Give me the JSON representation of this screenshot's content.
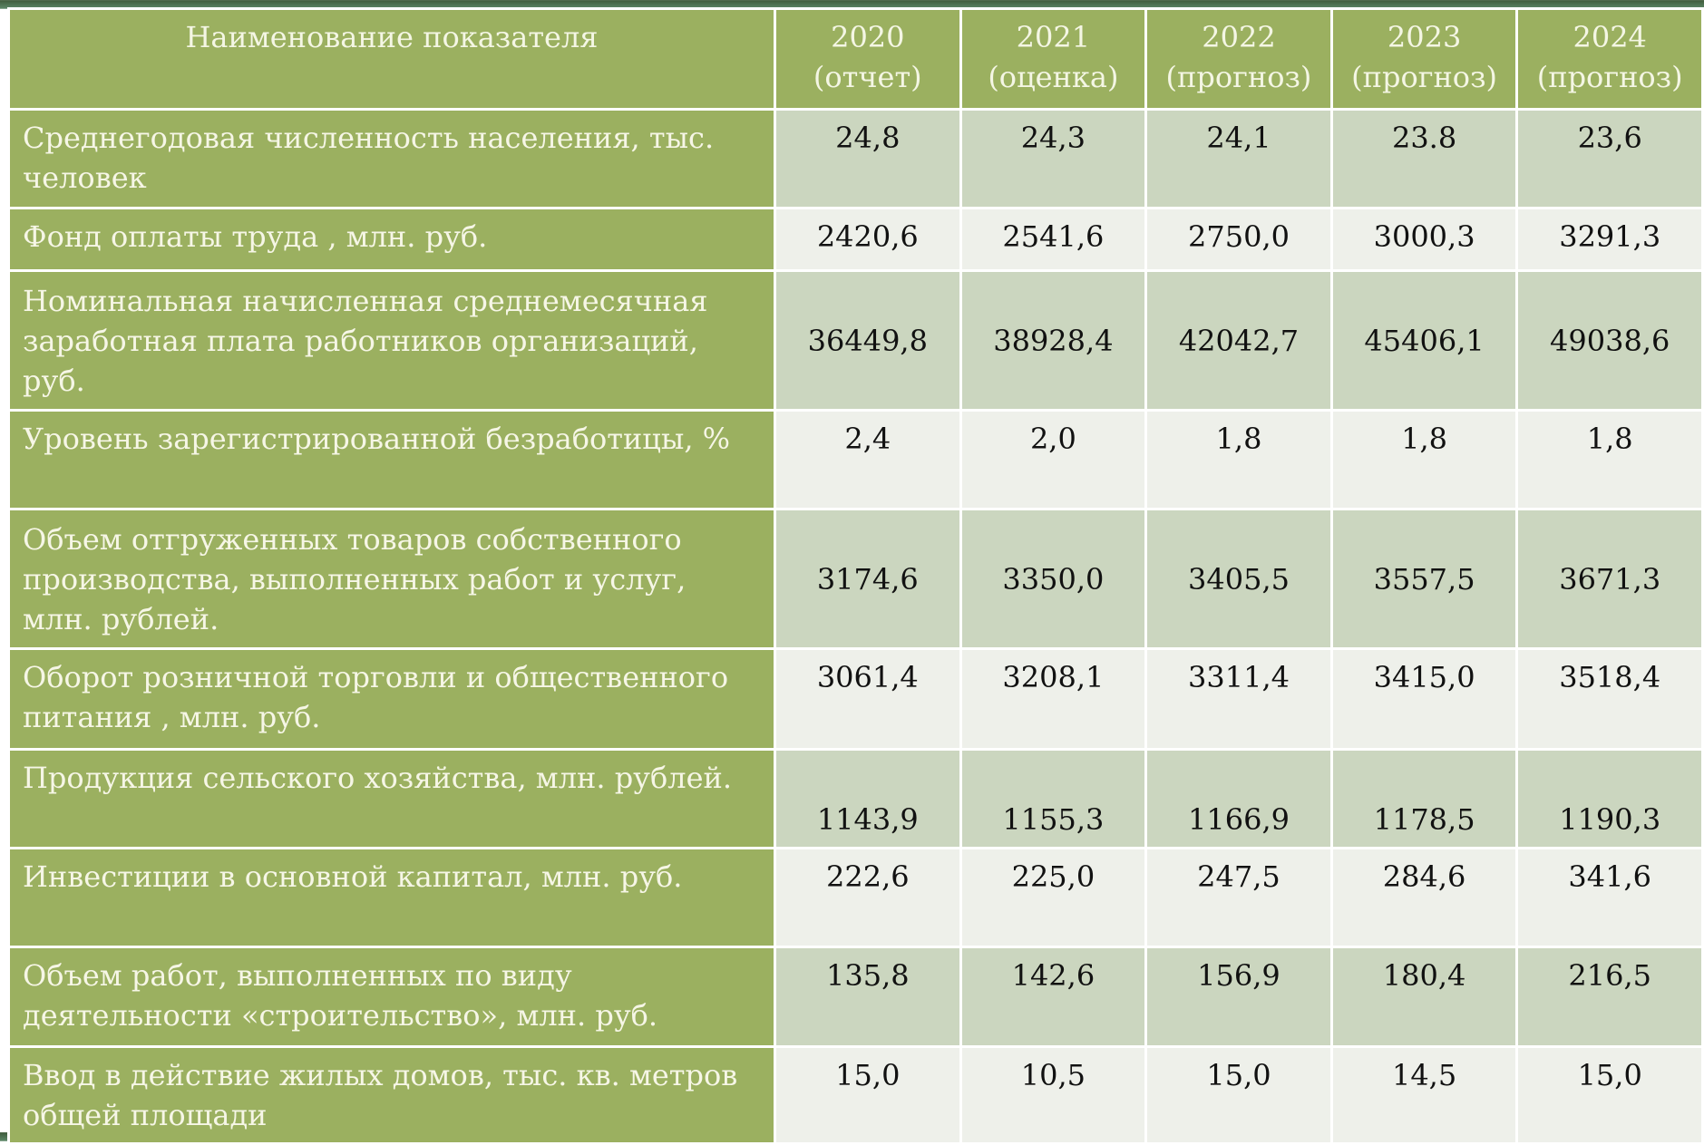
{
  "table": {
    "header": {
      "label": "Наименование показателя",
      "columns": [
        {
          "year": "2020",
          "note": "(отчет)"
        },
        {
          "year": "2021",
          "note": "(оценка)"
        },
        {
          "year": "2022",
          "note": "(прогноз)"
        },
        {
          "year": "2023",
          "note": "(прогноз)"
        },
        {
          "year": "2024",
          "note": "(прогноз)"
        }
      ]
    },
    "rows": [
      {
        "label": "Среднегодовая численность населения, тыс. человек",
        "values": [
          "24,8",
          "24,3",
          "24,1",
          "23.8",
          "23,6"
        ]
      },
      {
        "label": "Фонд оплаты труда , млн. руб.",
        "values": [
          "2420,6",
          "2541,6",
          "2750,0",
          "3000,3",
          "3291,3"
        ]
      },
      {
        "label": "Номинальная начисленная среднемесячная заработная плата работников организаций, руб.",
        "values": [
          "36449,8",
          "38928,4",
          "42042,7",
          "45406,1",
          "49038,6"
        ]
      },
      {
        "label": "Уровень зарегистрированной безработицы, %",
        "values": [
          "2,4",
          "2,0",
          "1,8",
          "1,8",
          "1,8"
        ]
      },
      {
        "label": "Объем отгруженных товаров собственного производства, выполненных работ и услуг, млн. рублей.",
        "values": [
          "3174,6",
          "3350,0",
          "3405,5",
          "3557,5",
          "3671,3"
        ]
      },
      {
        "label": "Оборот розничной торговли и общественного питания , млн. руб.",
        "values": [
          "3061,4",
          "3208,1",
          "3311,4",
          "3415,0",
          "3518,4"
        ]
      },
      {
        "label": "Продукция сельского хозяйства, млн. рублей.",
        "values": [
          "1143,9",
          "1155,3",
          "1166,9",
          "1178,5",
          "1190,3"
        ]
      },
      {
        "label": "Инвестиции в основной капитал, млн. руб.",
        "values": [
          "222,6",
          "225,0",
          "247,5",
          "284,6",
          "341,6"
        ]
      },
      {
        "label": "Объем работ, выполненных по виду деятельности «строительство», млн. руб.",
        "values": [
          "135,8",
          "142,6",
          "156,9",
          "180,4",
          "216,5"
        ]
      },
      {
        "label": "Ввод в действие жилых домов, тыс. кв. метров общей площади",
        "values": [
          "15,0",
          "10,5",
          "15,0",
          "14,5",
          "15,0"
        ]
      }
    ]
  }
}
